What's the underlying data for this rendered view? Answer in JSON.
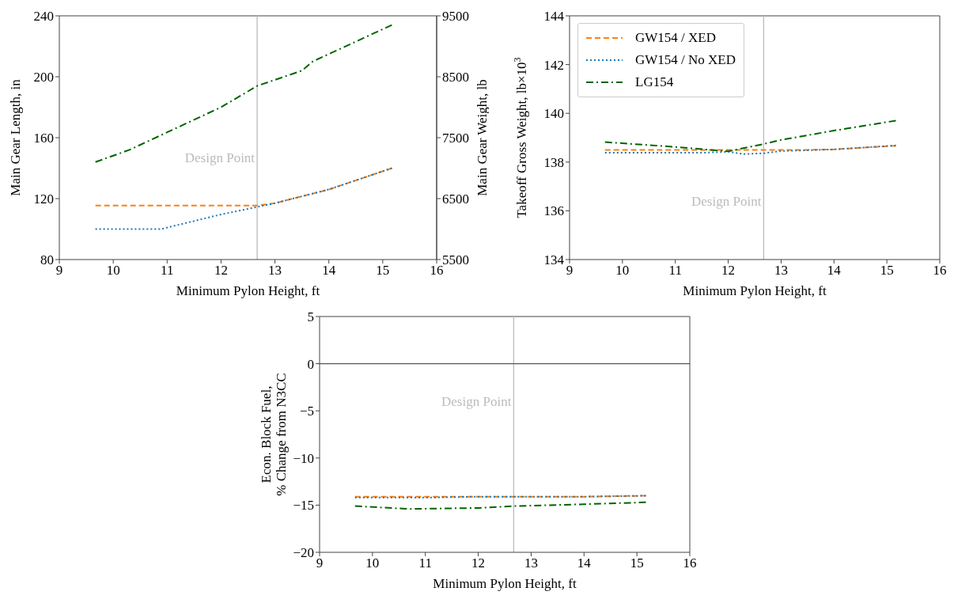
{
  "chart_data": [
    {
      "type": "line",
      "xlabel": "Minimum Pylon Height, ft",
      "ylabel": "Main Gear Length, in",
      "y2label": "Main Gear Weight, lb",
      "xlim": [
        9,
        16
      ],
      "xticks": [
        9,
        10,
        11,
        12,
        13,
        14,
        15,
        16
      ],
      "ylim": [
        80,
        240
      ],
      "yticks": [
        80,
        120,
        160,
        200,
        240
      ],
      "y2lim": [
        5500,
        9500
      ],
      "y2ticks": [
        5500,
        6500,
        7500,
        8500,
        9500
      ],
      "legend": false,
      "ref_lines": [
        {
          "axis": "x",
          "value": 12.67,
          "label": "Design Point",
          "color": "#bbbbbb"
        }
      ],
      "series": [
        {
          "color": "#ff7f0e",
          "line_style": "dashed",
          "x": [
            9.67,
            10,
            11,
            12,
            12.67,
            13,
            14,
            15.17
          ],
          "values": [
            115.5,
            115.5,
            115.5,
            115.5,
            115.5,
            117,
            126,
            140
          ]
        },
        {
          "color": "#1f77b4",
          "line_style": "dotted",
          "x": [
            9.67,
            10,
            10.9,
            11,
            12,
            12.67,
            13,
            14,
            15.17
          ],
          "values": [
            100,
            100,
            100,
            101,
            109.6,
            114.5,
            117,
            126,
            140
          ]
        },
        {
          "color": "#006400",
          "line_style": "dashdot",
          "axis": "y2",
          "x": [
            9.67,
            10.3,
            12,
            12.67,
            13.5,
            13.7,
            15.17
          ],
          "values": [
            7100,
            7300,
            8000,
            8350,
            8600,
            8750,
            9350
          ]
        }
      ]
    },
    {
      "type": "line",
      "xlabel": "Minimum Pylon Height, ft",
      "ylabel": "Takeoff Gross Weight, lb×10$^{3}$",
      "xlim": [
        9,
        16
      ],
      "xticks": [
        9,
        10,
        11,
        12,
        13,
        14,
        15,
        16
      ],
      "ylim": [
        134,
        144
      ],
      "yticks": [
        134,
        136,
        138,
        140,
        142,
        144
      ],
      "legend": "top left",
      "ref_lines": [
        {
          "axis": "x",
          "value": 12.67,
          "label": "Design Point",
          "color": "#bbbbbb"
        }
      ],
      "series": [
        {
          "name": "GW154 / XED",
          "color": "#ff7f0e",
          "line_style": "dashed",
          "x": [
            9.67,
            11,
            12,
            12.67,
            13,
            13.5,
            14,
            15.17
          ],
          "values": [
            138.5,
            138.5,
            138.5,
            138.5,
            138.5,
            138.5,
            138.52,
            138.67
          ]
        },
        {
          "name": "GW154 / No XED",
          "color": "#1f77b4",
          "line_style": "dotted",
          "x": [
            9.67,
            11,
            11.5,
            12,
            12.3,
            12.67,
            13,
            14,
            15.17
          ],
          "values": [
            138.38,
            138.38,
            138.38,
            138.42,
            138.33,
            138.36,
            138.45,
            138.52,
            138.68
          ]
        },
        {
          "name": "LG154",
          "color": "#006400",
          "line_style": "dashdot",
          "x": [
            9.67,
            11,
            12,
            12.67,
            13,
            14,
            15.17
          ],
          "values": [
            138.82,
            138.62,
            138.44,
            138.74,
            138.91,
            139.29,
            139.7
          ]
        }
      ]
    },
    {
      "type": "line",
      "xlabel": "Minimum Pylon Height, ft",
      "ylabel": "Econ. Block Fuel,\n% Change from N3CC",
      "xlim": [
        9,
        16
      ],
      "xticks": [
        9,
        10,
        11,
        12,
        13,
        14,
        15,
        16
      ],
      "ylim": [
        -20,
        5
      ],
      "yticks": [
        -20,
        -15,
        -10,
        -5,
        0,
        5
      ],
      "legend": false,
      "ref_lines": [
        {
          "axis": "x",
          "value": 12.67,
          "label": "Design Point",
          "color": "#bbbbbb"
        },
        {
          "axis": "y",
          "value": 0,
          "color": "#555555"
        }
      ],
      "series": [
        {
          "color": "#ff7f0e",
          "line_style": "dashed",
          "x": [
            9.67,
            11,
            12,
            12.67,
            14,
            15.17
          ],
          "values": [
            -14.1,
            -14.1,
            -14.1,
            -14.1,
            -14.1,
            -14.0
          ]
        },
        {
          "color": "#1f77b4",
          "line_style": "dotted",
          "x": [
            9.67,
            11,
            12,
            12.67,
            14,
            15.17
          ],
          "values": [
            -14.2,
            -14.2,
            -14.1,
            -14.1,
            -14.1,
            -14.0
          ]
        },
        {
          "color": "#006400",
          "line_style": "dashdot",
          "x": [
            9.67,
            10.67,
            12,
            12.67,
            14,
            15.17
          ],
          "values": [
            -15.1,
            -15.4,
            -15.3,
            -15.1,
            -14.9,
            -14.7
          ]
        }
      ]
    }
  ]
}
